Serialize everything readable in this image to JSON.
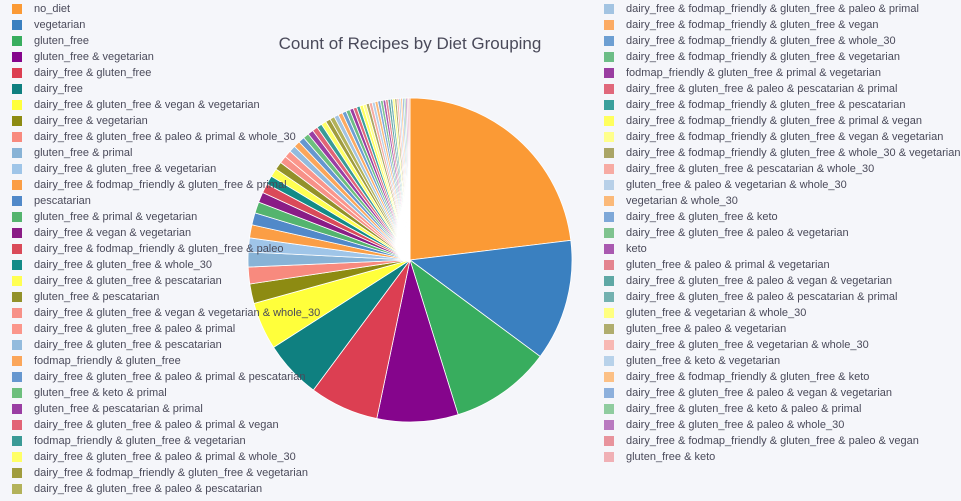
{
  "chart_data": {
    "type": "pie",
    "title": "Count of Recipes by Diet Grouping",
    "legend_placement": "left-and-right columns",
    "slices": [
      {
        "label": "no_diet",
        "value": 24.8,
        "color": "#fb9a35"
      },
      {
        "label": "vegetarian",
        "value": 13.0,
        "color": "#3a80c0"
      },
      {
        "label": "gluten_free",
        "value": 10.8,
        "color": "#38ad5e"
      },
      {
        "label": "gluten_free & vegetarian",
        "value": 8.7,
        "color": "#85058c"
      },
      {
        "label": "dairy_free & gluten_free",
        "value": 7.4,
        "color": "#dc3f52"
      },
      {
        "label": "dairy_free",
        "value": 6.2,
        "color": "#0f8080"
      },
      {
        "label": "dairy_free & gluten_free & vegan & vegetarian",
        "value": 5.1,
        "color": "#ffff3b"
      },
      {
        "label": "dairy_free & vegetarian",
        "value": 2.1,
        "color": "#8d8b12"
      },
      {
        "label": "dairy_free & gluten_free & paleo & primal & whole_30",
        "value": 1.8,
        "color": "#f88a7e"
      },
      {
        "label": "gluten_free & primal",
        "value": 1.6,
        "color": "#88b3d6"
      },
      {
        "label": "dairy_free & gluten_free & vegetarian",
        "value": 1.5,
        "color": "#9fc5e8"
      },
      {
        "label": "dairy_free & fodmap_friendly & gluten_free & primal",
        "value": 1.4,
        "color": "#fb9e45"
      },
      {
        "label": "pescatarian",
        "value": 1.3,
        "color": "#5189c9"
      },
      {
        "label": "gluten_free & primal & vegetarian",
        "value": 1.2,
        "color": "#54b46e"
      },
      {
        "label": "dairy_free & vegan & vegetarian",
        "value": 1.1,
        "color": "#8a1c86"
      },
      {
        "label": "dairy_free & fodmap_friendly & gluten_free & paleo",
        "value": 1.0,
        "color": "#da4a59"
      },
      {
        "label": "dairy_free & gluten_free & whole_30",
        "value": 0.95,
        "color": "#138b87"
      },
      {
        "label": "dairy_free & gluten_free & pescatarian",
        "value": 0.9,
        "color": "#ffff52"
      },
      {
        "label": "gluten_free & pescatarian",
        "value": 0.85,
        "color": "#92912a"
      },
      {
        "label": "dairy_free & gluten_free & vegan & vegetarian & whole_30",
        "value": 0.8,
        "color": "#f79188"
      },
      {
        "label": "dairy_free & gluten_free & paleo & primal",
        "value": 0.75,
        "color": "#fb968b"
      },
      {
        "label": "dairy_free & gluten_free & pescatarian",
        "value": 0.7,
        "color": "#93bbdd"
      },
      {
        "label": "fodmap_friendly & gluten_free",
        "value": 0.68,
        "color": "#fba65a"
      },
      {
        "label": "dairy_free & gluten_free & paleo & primal & pescatarian",
        "value": 0.65,
        "color": "#6697cf"
      },
      {
        "label": "gluten_free & keto & primal",
        "value": 0.62,
        "color": "#6dbf7d"
      },
      {
        "label": "gluten_free & pescatarian & primal",
        "value": 0.6,
        "color": "#9a3ea3"
      },
      {
        "label": "dairy_free & gluten_free & paleo & primal & vegan",
        "value": 0.58,
        "color": "#e26476"
      },
      {
        "label": "fodmap_friendly & gluten_free & vegetarian",
        "value": 0.56,
        "color": "#3a9a96"
      },
      {
        "label": "dairy_free & gluten_free & paleo & primal & whole_30",
        "value": 0.54,
        "color": "#ffff66"
      },
      {
        "label": "dairy_free & fodmap_friendly & gluten_free & vegetarian",
        "value": 0.52,
        "color": "#a09c3e"
      },
      {
        "label": "dairy_free & gluten_free & paleo & pescatarian",
        "value": 0.5,
        "color": "#b3b25a"
      },
      {
        "label": "dairy_free & fodmap_friendly & gluten_free & paleo & primal",
        "value": 0.48,
        "color": "#a3c4e2"
      },
      {
        "label": "dairy_free & fodmap_friendly & gluten_free & vegan",
        "value": 0.46,
        "color": "#fcab63"
      },
      {
        "label": "dairy_free & fodmap_friendly & gluten_free & whole_30",
        "value": 0.44,
        "color": "#6d9fd2"
      },
      {
        "label": "dairy_free & fodmap_friendly & gluten_free & vegetarian",
        "value": 0.42,
        "color": "#6cbd86"
      },
      {
        "label": "fodmap_friendly & gluten_free & primal & vegetarian",
        "value": 0.4,
        "color": "#9a3ea1"
      },
      {
        "label": "dairy_free & gluten_free & paleo & pescatarian & primal",
        "value": 0.38,
        "color": "#e0687b"
      },
      {
        "label": "dairy_free & fodmap_friendly & gluten_free & pescatarian",
        "value": 0.36,
        "color": "#3aa09c"
      },
      {
        "label": "dairy_free & fodmap_friendly & gluten_free & primal & vegan",
        "value": 0.35,
        "color": "#ffff5e"
      },
      {
        "label": "dairy_free & fodmap_friendly & gluten_free & vegan & vegetarian",
        "value": 0.34,
        "color": "#ffff8c"
      },
      {
        "label": "dairy_free & fodmap_friendly & gluten_free & whole_30 & vegetarian",
        "value": 0.33,
        "color": "#aaa566"
      },
      {
        "label": "dairy_free & gluten_free & pescatarian & whole_30",
        "value": 0.32,
        "color": "#f7aba3"
      },
      {
        "label": "gluten_free & paleo & vegetarian & whole_30",
        "value": 0.31,
        "color": "#b8d0e8"
      },
      {
        "label": "vegetarian & whole_30",
        "value": 0.3,
        "color": "#fbb979"
      },
      {
        "label": "dairy_free & gluten_free & keto",
        "value": 0.29,
        "color": "#7ea8d8"
      },
      {
        "label": "dairy_free & gluten_free & paleo & vegetarian",
        "value": 0.28,
        "color": "#7fc38f"
      },
      {
        "label": "keto",
        "value": 0.27,
        "color": "#a959b0"
      },
      {
        "label": "gluten_free & paleo & primal & vegetarian",
        "value": 0.26,
        "color": "#e4848f"
      },
      {
        "label": "dairy_free & gluten_free & paleo & vegan & vegetarian",
        "value": 0.25,
        "color": "#5fa8a5"
      },
      {
        "label": "dairy_free & gluten_free & paleo & pescatarian & primal",
        "value": 0.24,
        "color": "#73b1b0"
      },
      {
        "label": "gluten_free & vegetarian & whole_30",
        "value": 0.23,
        "color": "#ffff80"
      },
      {
        "label": "gluten_free & paleo & vegetarian",
        "value": 0.22,
        "color": "#b0ad6e"
      },
      {
        "label": "dairy_free & gluten_free & vegetarian & whole_30",
        "value": 0.21,
        "color": "#f8b8b3"
      },
      {
        "label": "gluten_free & keto & vegetarian",
        "value": 0.2,
        "color": "#b8d2ea"
      },
      {
        "label": "dairy_free & fodmap_friendly & gluten_free & keto",
        "value": 0.19,
        "color": "#fcc085"
      },
      {
        "label": "dairy_free & gluten_free & paleo & vegan & vegetarian",
        "value": 0.18,
        "color": "#8db0dc"
      },
      {
        "label": "dairy_free & gluten_free & keto & paleo & primal",
        "value": 0.17,
        "color": "#8fcc9f"
      },
      {
        "label": "dairy_free & gluten_free & paleo & whole_30",
        "value": 0.16,
        "color": "#b97ac0"
      },
      {
        "label": "dairy_free & fodmap_friendly & gluten_free & paleo & vegan",
        "value": 0.15,
        "color": "#e8939c"
      },
      {
        "label": "gluten_free & keto",
        "value": 0.14,
        "color": "#f0b0b5"
      }
    ],
    "legend_left": [
      {
        "label": "no_diet",
        "color": "#fb9a35"
      },
      {
        "label": "vegetarian",
        "color": "#3a80c0"
      },
      {
        "label": "gluten_free",
        "color": "#38ad5e"
      },
      {
        "label": "gluten_free & vegetarian",
        "color": "#85058c"
      },
      {
        "label": "dairy_free & gluten_free",
        "color": "#dc3f52"
      },
      {
        "label": "dairy_free",
        "color": "#0f8080"
      },
      {
        "label": "dairy_free & gluten_free & vegan & vegetarian",
        "color": "#ffff3b"
      },
      {
        "label": "dairy_free & vegetarian",
        "color": "#8d8b12"
      },
      {
        "label": "dairy_free & gluten_free & paleo & primal & whole_30",
        "color": "#f88a7e"
      },
      {
        "label": "gluten_free & primal",
        "color": "#88b3d6"
      },
      {
        "label": "dairy_free & gluten_free & vegetarian",
        "color": "#9fc5e8"
      },
      {
        "label": "dairy_free & fodmap_friendly & gluten_free & primal",
        "color": "#fb9e45"
      },
      {
        "label": "pescatarian",
        "color": "#5189c9"
      },
      {
        "label": "gluten_free & primal & vegetarian",
        "color": "#54b46e"
      },
      {
        "label": "dairy_free & vegan & vegetarian",
        "color": "#8a1c86"
      },
      {
        "label": "dairy_free & fodmap_friendly & gluten_free & paleo",
        "color": "#da4a59"
      },
      {
        "label": "dairy_free & gluten_free & whole_30",
        "color": "#138b87"
      },
      {
        "label": "dairy_free & gluten_free & pescatarian",
        "color": "#ffff52"
      },
      {
        "label": "gluten_free & pescatarian",
        "color": "#92912a"
      },
      {
        "label": "dairy_free & gluten_free & vegan & vegetarian & whole_30",
        "color": "#f79188"
      },
      {
        "label": "dairy_free & gluten_free & paleo & primal",
        "color": "#fb968b"
      },
      {
        "label": "dairy_free & gluten_free & pescatarian",
        "color": "#93bbdd"
      },
      {
        "label": "fodmap_friendly & gluten_free",
        "color": "#fba65a"
      },
      {
        "label": "dairy_free & gluten_free & paleo & primal & pescatarian",
        "color": "#6697cf"
      },
      {
        "label": "gluten_free & keto & primal",
        "color": "#6dbf7d"
      },
      {
        "label": "gluten_free & pescatarian & primal",
        "color": "#9a3ea3"
      },
      {
        "label": "dairy_free & gluten_free & paleo & primal & vegan",
        "color": "#e26476"
      },
      {
        "label": "fodmap_friendly & gluten_free & vegetarian",
        "color": "#3a9a96"
      },
      {
        "label": "dairy_free & gluten_free & paleo & primal & whole_30",
        "color": "#ffff66"
      },
      {
        "label": "dairy_free & fodmap_friendly & gluten_free & vegetarian",
        "color": "#a09c3e"
      },
      {
        "label": "dairy_free & gluten_free & paleo & pescatarian",
        "color": "#b3b25a"
      }
    ],
    "legend_right": [
      {
        "label": "dairy_free & fodmap_friendly & gluten_free & paleo & primal",
        "color": "#a3c4e2"
      },
      {
        "label": "dairy_free & fodmap_friendly & gluten_free & vegan",
        "color": "#fcab63"
      },
      {
        "label": "dairy_free & fodmap_friendly & gluten_free & whole_30",
        "color": "#6d9fd2"
      },
      {
        "label": "dairy_free & fodmap_friendly & gluten_free & vegetarian",
        "color": "#6cbd86"
      },
      {
        "label": "fodmap_friendly & gluten_free & primal & vegetarian",
        "color": "#9a3ea1"
      },
      {
        "label": "dairy_free & gluten_free & paleo & pescatarian & primal",
        "color": "#e0687b"
      },
      {
        "label": "dairy_free & fodmap_friendly & gluten_free & pescatarian",
        "color": "#3aa09c"
      },
      {
        "label": "dairy_free & fodmap_friendly & gluten_free & primal & vegan",
        "color": "#ffff5e"
      },
      {
        "label": "dairy_free & fodmap_friendly & gluten_free & vegan & vegetarian",
        "color": "#ffff8c"
      },
      {
        "label": "dairy_free & fodmap_friendly & gluten_free & whole_30 & vegetarian",
        "color": "#aaa566"
      },
      {
        "label": "dairy_free & gluten_free & pescatarian & whole_30",
        "color": "#f7aba3"
      },
      {
        "label": "gluten_free & paleo & vegetarian & whole_30",
        "color": "#b8d0e8"
      },
      {
        "label": "vegetarian & whole_30",
        "color": "#fbb979"
      },
      {
        "label": "dairy_free & gluten_free & keto",
        "color": "#7ea8d8"
      },
      {
        "label": "dairy_free & gluten_free & paleo & vegetarian",
        "color": "#7fc38f"
      },
      {
        "label": "keto",
        "color": "#a959b0"
      },
      {
        "label": "gluten_free & paleo & primal & vegetarian",
        "color": "#e4848f"
      },
      {
        "label": "dairy_free & gluten_free & paleo & vegan & vegetarian",
        "color": "#5fa8a5"
      },
      {
        "label": "dairy_free & gluten_free & paleo & pescatarian & primal",
        "color": "#73b1b0"
      },
      {
        "label": "gluten_free & vegetarian & whole_30",
        "color": "#ffff80"
      },
      {
        "label": "gluten_free & paleo & vegetarian",
        "color": "#b0ad6e"
      },
      {
        "label": "dairy_free & gluten_free & vegetarian & whole_30",
        "color": "#f8b8b3"
      },
      {
        "label": "gluten_free & keto & vegetarian",
        "color": "#b8d2ea"
      },
      {
        "label": "dairy_free & fodmap_friendly & gluten_free & keto",
        "color": "#fcc085"
      },
      {
        "label": "dairy_free & gluten_free & paleo & vegan & vegetarian",
        "color": "#8db0dc"
      },
      {
        "label": "dairy_free & gluten_free & keto & paleo & primal",
        "color": "#8fcc9f"
      },
      {
        "label": "dairy_free & gluten_free & paleo & whole_30",
        "color": "#b97ac0"
      },
      {
        "label": "dairy_free & fodmap_friendly & gluten_free & paleo & vegan",
        "color": "#e8939c"
      },
      {
        "label": "gluten_free & keto",
        "color": "#f0b0b5"
      }
    ]
  }
}
